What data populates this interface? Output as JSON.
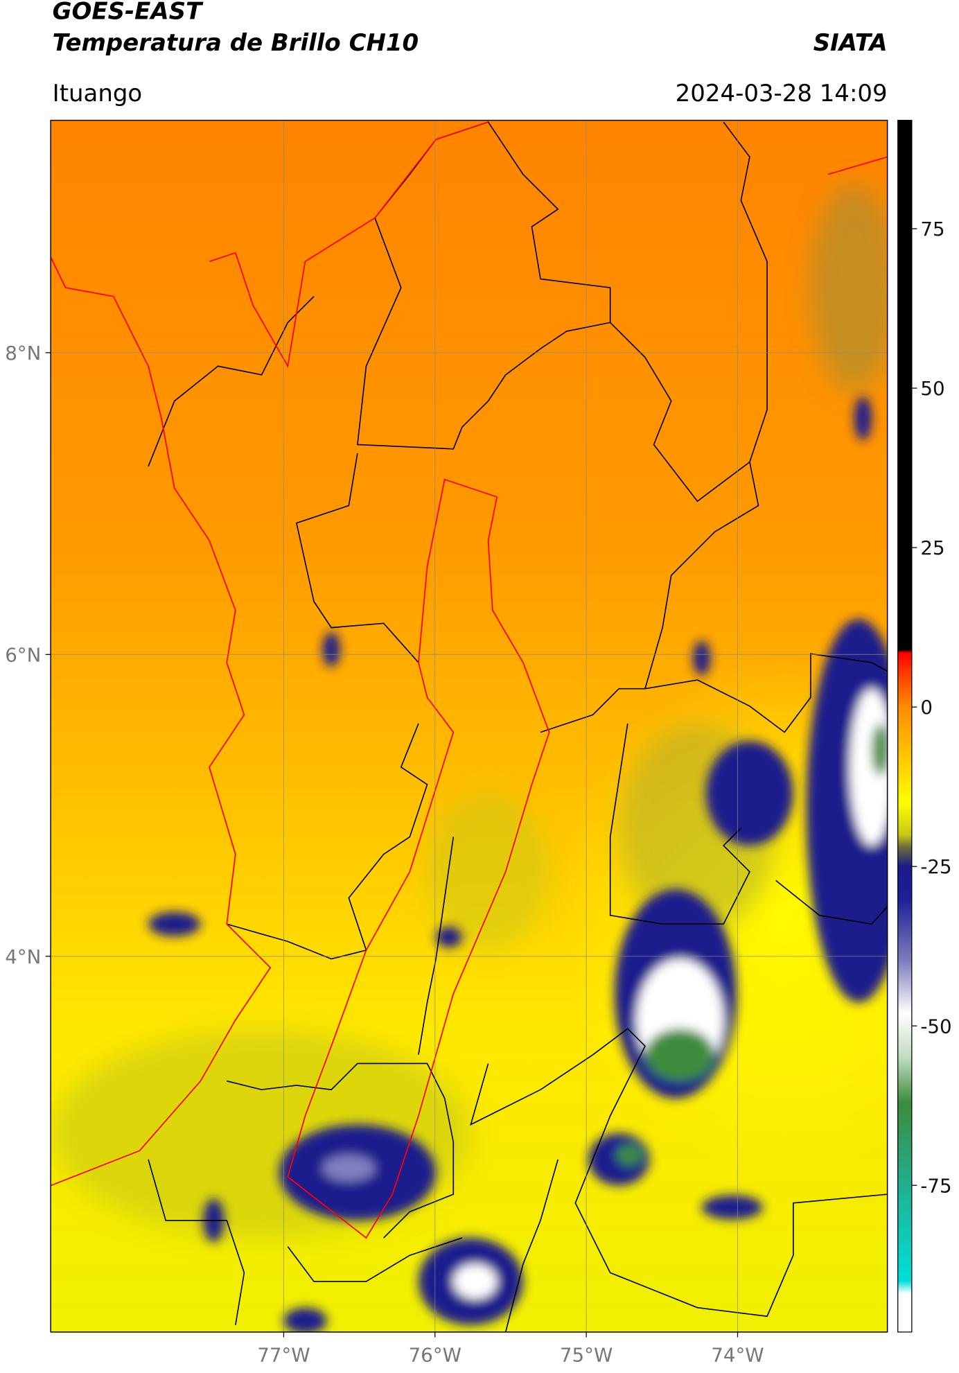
{
  "header": {
    "title": "GOES-EAST",
    "subtitle": "Temperatura de Brillo CH10",
    "agency": "SIATA",
    "location": "Ituango",
    "datetime": "2024-03-28 14:09"
  },
  "map": {
    "xlim": [
      -78.54,
      -73.01
    ],
    "ylim": [
      1.51,
      9.54
    ],
    "grid": true,
    "xticks": [
      {
        "value": -77,
        "label": "77°W"
      },
      {
        "value": -76,
        "label": "76°W"
      },
      {
        "value": -75,
        "label": "75°W"
      },
      {
        "value": -74,
        "label": "74°W"
      }
    ],
    "yticks": [
      {
        "value": 8,
        "label": "8°N"
      },
      {
        "value": 6,
        "label": "6°N"
      },
      {
        "value": 4,
        "label": "4°N"
      }
    ]
  },
  "colorbar": {
    "lim": [
      -98,
      92
    ],
    "ticks": [
      75,
      50,
      25,
      0,
      -25,
      -50,
      -75
    ],
    "colorscale": [
      {
        "value": 92,
        "color": "#000000"
      },
      {
        "value": 9,
        "color": "#000000"
      },
      {
        "value": 8.5,
        "color": "#ff0000"
      },
      {
        "value": 5,
        "color": "#ff4000"
      },
      {
        "value": 0,
        "color": "#ff8c00"
      },
      {
        "value": -10,
        "color": "#ffd700"
      },
      {
        "value": -15,
        "color": "#ffff00"
      },
      {
        "value": -20,
        "color": "#c8c814"
      },
      {
        "value": -22,
        "color": "#6b6b3a"
      },
      {
        "value": -25,
        "color": "#1a1a8c"
      },
      {
        "value": -30,
        "color": "#1e1e96"
      },
      {
        "value": -40,
        "color": "#8080c0"
      },
      {
        "value": -48,
        "color": "#ffffff"
      },
      {
        "value": -55,
        "color": "#c0dcc0"
      },
      {
        "value": -62,
        "color": "#3c8c3c"
      },
      {
        "value": -75,
        "color": "#20b090"
      },
      {
        "value": -90,
        "color": "#00e0d8"
      },
      {
        "value": -92,
        "color": "#ffffff"
      },
      {
        "value": -98,
        "color": "#ffffff"
      }
    ]
  }
}
